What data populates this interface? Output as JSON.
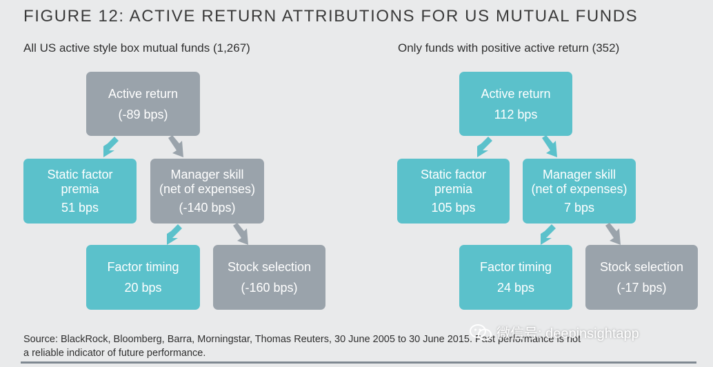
{
  "figure_title": "FIGURE 12: ACTIVE RETURN ATTRIBUTIONS FOR US MUTUAL FUNDS",
  "left": {
    "subtitle": "All US active style box mutual funds (1,267)",
    "active_return": {
      "label": "Active return",
      "value": "(-89 bps)"
    },
    "static_factor": {
      "label1": "Static factor",
      "label2": "premia",
      "value": "51 bps"
    },
    "manager_skill": {
      "label1": "Manager skill",
      "label2": "(net of expenses)",
      "value": "(-140 bps)"
    },
    "factor_timing": {
      "label": "Factor timing",
      "value": "20 bps"
    },
    "stock_selection": {
      "label": "Stock selection",
      "value": "(-160 bps)"
    }
  },
  "right": {
    "subtitle": "Only funds with positive active return (352)",
    "active_return": {
      "label": "Active return",
      "value": "112 bps"
    },
    "static_factor": {
      "label1": "Static factor",
      "label2": "premia",
      "value": "105 bps"
    },
    "manager_skill": {
      "label1": "Manager skill",
      "label2": "(net of expenses)",
      "value": "7 bps"
    },
    "factor_timing": {
      "label": "Factor timing",
      "value": "24 bps"
    },
    "stock_selection": {
      "label": "Stock selection",
      "value": "(-17 bps)"
    }
  },
  "source_line1": "Source: BlackRock, Bloomberg, Barra, Morningstar, Thomas Reuters, 30 June 2005 to 30 June 2015. Past performance is not",
  "source_line2": "a reliable indicator of future performance.",
  "watermark": "微信号: deepinsightapp",
  "colors": {
    "positive_box": "#5bc1cb",
    "negative_box": "#9aa3ab",
    "background": "#e9eaeb"
  }
}
